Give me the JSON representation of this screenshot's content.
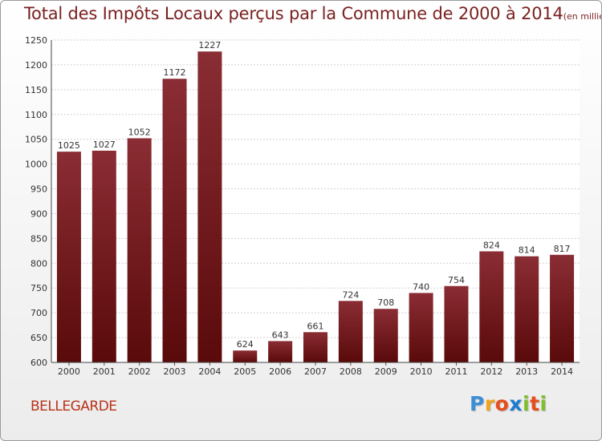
{
  "chart_data": {
    "type": "bar",
    "title": "Total des Impôts Locaux perçus par la Commune de 2000 à 2014",
    "subtitle": "(en milliers d'€)",
    "categories": [
      "2000",
      "2001",
      "2002",
      "2003",
      "2004",
      "2005",
      "2006",
      "2007",
      "2008",
      "2009",
      "2010",
      "2011",
      "2012",
      "2013",
      "2014"
    ],
    "values": [
      1025,
      1027,
      1052,
      1172,
      1227,
      624,
      643,
      661,
      724,
      708,
      740,
      754,
      824,
      814,
      817
    ],
    "ylim": [
      600,
      1250
    ],
    "yticks": [
      600,
      650,
      700,
      750,
      800,
      850,
      900,
      950,
      1000,
      1050,
      1100,
      1150,
      1200,
      1250
    ],
    "xlabel": "",
    "ylabel": "",
    "grid": true
  },
  "commune": "BELLEGARDE",
  "logo": {
    "letters": [
      "P",
      "r",
      "o",
      "x",
      "i",
      "t",
      "i"
    ],
    "colors": [
      "#3c8fd6",
      "#f2a21b",
      "#e84e1b",
      "#1e7bd3",
      "#7fbf2b",
      "#e84e1b",
      "#7fbf2b"
    ]
  },
  "colors": {
    "bar_top": "#8a2d34",
    "bar_bottom": "#5a0a0a",
    "title": "#7a1f1f",
    "grid": "#d0d0d0"
  }
}
